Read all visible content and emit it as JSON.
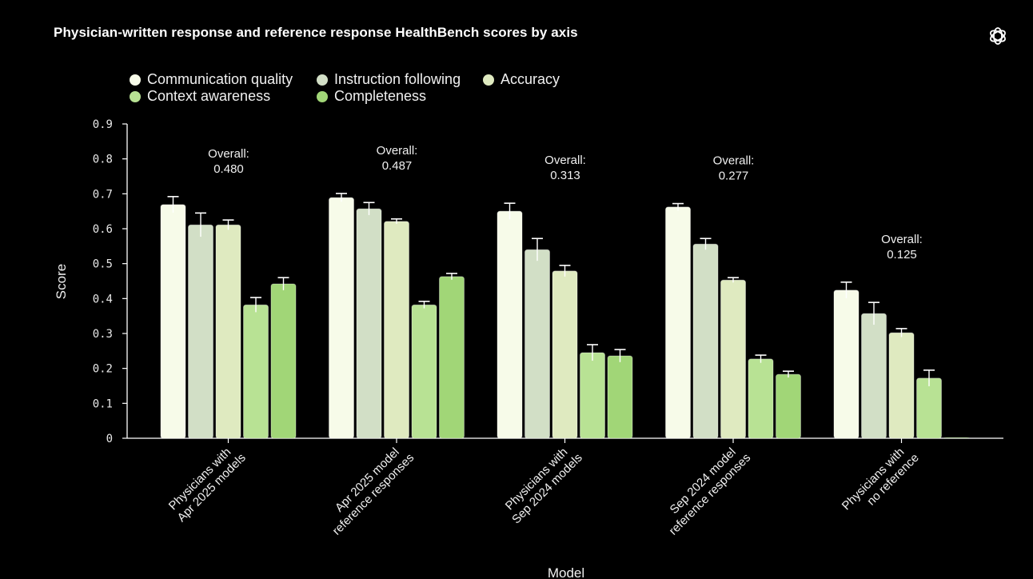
{
  "header": {
    "title": "Physician-written response and reference response HealthBench scores by axis",
    "logo_icon": "openai-logo-icon"
  },
  "chart_data": {
    "type": "bar",
    "title": "Physician-written response and reference response HealthBench scores by axis",
    "xlabel": "Model",
    "ylabel": "Score",
    "ylim": [
      0,
      0.9
    ],
    "yticks": [
      "0",
      "0.1",
      "0.2",
      "0.3",
      "0.4",
      "0.5",
      "0.6",
      "0.7",
      "0.8",
      "0.9"
    ],
    "ytick_values": [
      0,
      0.1,
      0.2,
      0.3,
      0.4,
      0.5,
      0.6,
      0.7,
      0.8,
      0.9
    ],
    "grid": false,
    "legend_position": "top-left",
    "categories": [
      [
        "Physicians with",
        "Apr 2025 models"
      ],
      [
        "Apr 2025 model",
        "reference responses"
      ],
      [
        "Physicians with",
        "Sep 2024 models"
      ],
      [
        "Sep 2024 model",
        "reference responses"
      ],
      [
        "Physicians with",
        "no reference"
      ]
    ],
    "overall": [
      {
        "label": "Overall:",
        "value": "0.480"
      },
      {
        "label": "Overall:",
        "value": "0.487"
      },
      {
        "label": "Overall:",
        "value": "0.313"
      },
      {
        "label": "Overall:",
        "value": "0.277"
      },
      {
        "label": "Overall:",
        "value": "0.125"
      }
    ],
    "series": [
      {
        "name": "Communication quality",
        "color": "#f7fbe9",
        "values": [
          0.669,
          0.689,
          0.65,
          0.662,
          0.424
        ],
        "errors": [
          0.023,
          0.012,
          0.023,
          0.01,
          0.023
        ]
      },
      {
        "name": "Instruction following",
        "color": "#d2dfc6",
        "values": [
          0.611,
          0.657,
          0.54,
          0.556,
          0.357
        ],
        "errors": [
          0.034,
          0.018,
          0.032,
          0.016,
          0.032
        ]
      },
      {
        "name": "Accuracy",
        "color": "#dfeac0",
        "values": [
          0.611,
          0.621,
          0.479,
          0.453,
          0.302
        ],
        "errors": [
          0.014,
          0.007,
          0.016,
          0.007,
          0.012
        ]
      },
      {
        "name": "Context awareness",
        "color": "#b8e294",
        "values": [
          0.382,
          0.382,
          0.245,
          0.227,
          0.172
        ],
        "errors": [
          0.021,
          0.01,
          0.023,
          0.011,
          0.023
        ]
      },
      {
        "name": "Completeness",
        "color": "#a1d677",
        "values": [
          0.442,
          0.463,
          0.236,
          0.183,
          0.0
        ],
        "errors": [
          0.018,
          0.009,
          0.018,
          0.009,
          0.0
        ]
      }
    ]
  }
}
